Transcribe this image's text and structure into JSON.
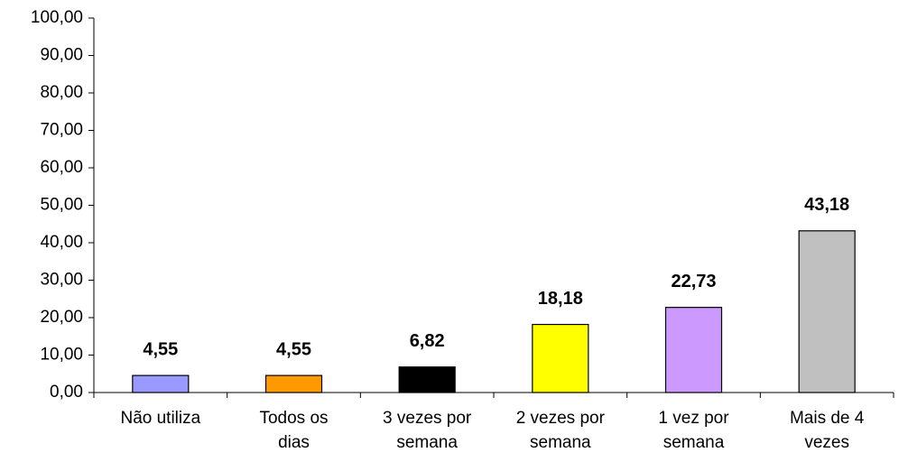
{
  "chart_data": {
    "type": "bar",
    "categories": [
      "Não utiliza",
      "Todos os\ndias",
      "3 vezes por\nsemana",
      "2 vezes por\nsemana",
      "1 vez por\nsemana",
      "Mais de 4\nvezes"
    ],
    "values": [
      4.55,
      4.55,
      6.82,
      18.18,
      22.73,
      43.18
    ],
    "value_labels": [
      "4,55",
      "4,55",
      "6,82",
      "18,18",
      "22,73",
      "43,18"
    ],
    "colors": [
      "#9999ff",
      "#ff9900",
      "#000000",
      "#ffff00",
      "#cc99ff",
      "#c0c0c0"
    ],
    "ylim": [
      0,
      100
    ],
    "yticks": [
      {
        "value": 0,
        "label": "0,00"
      },
      {
        "value": 10,
        "label": "10,00"
      },
      {
        "value": 20,
        "label": "20,00"
      },
      {
        "value": 30,
        "label": "30,00"
      },
      {
        "value": 40,
        "label": "40,00"
      },
      {
        "value": 50,
        "label": "50,00"
      },
      {
        "value": 60,
        "label": "60,00"
      },
      {
        "value": 70,
        "label": "70,00"
      },
      {
        "value": 80,
        "label": "80,00"
      },
      {
        "value": 90,
        "label": "90,00"
      },
      {
        "value": 100,
        "label": "100,00"
      }
    ],
    "grid": false
  }
}
